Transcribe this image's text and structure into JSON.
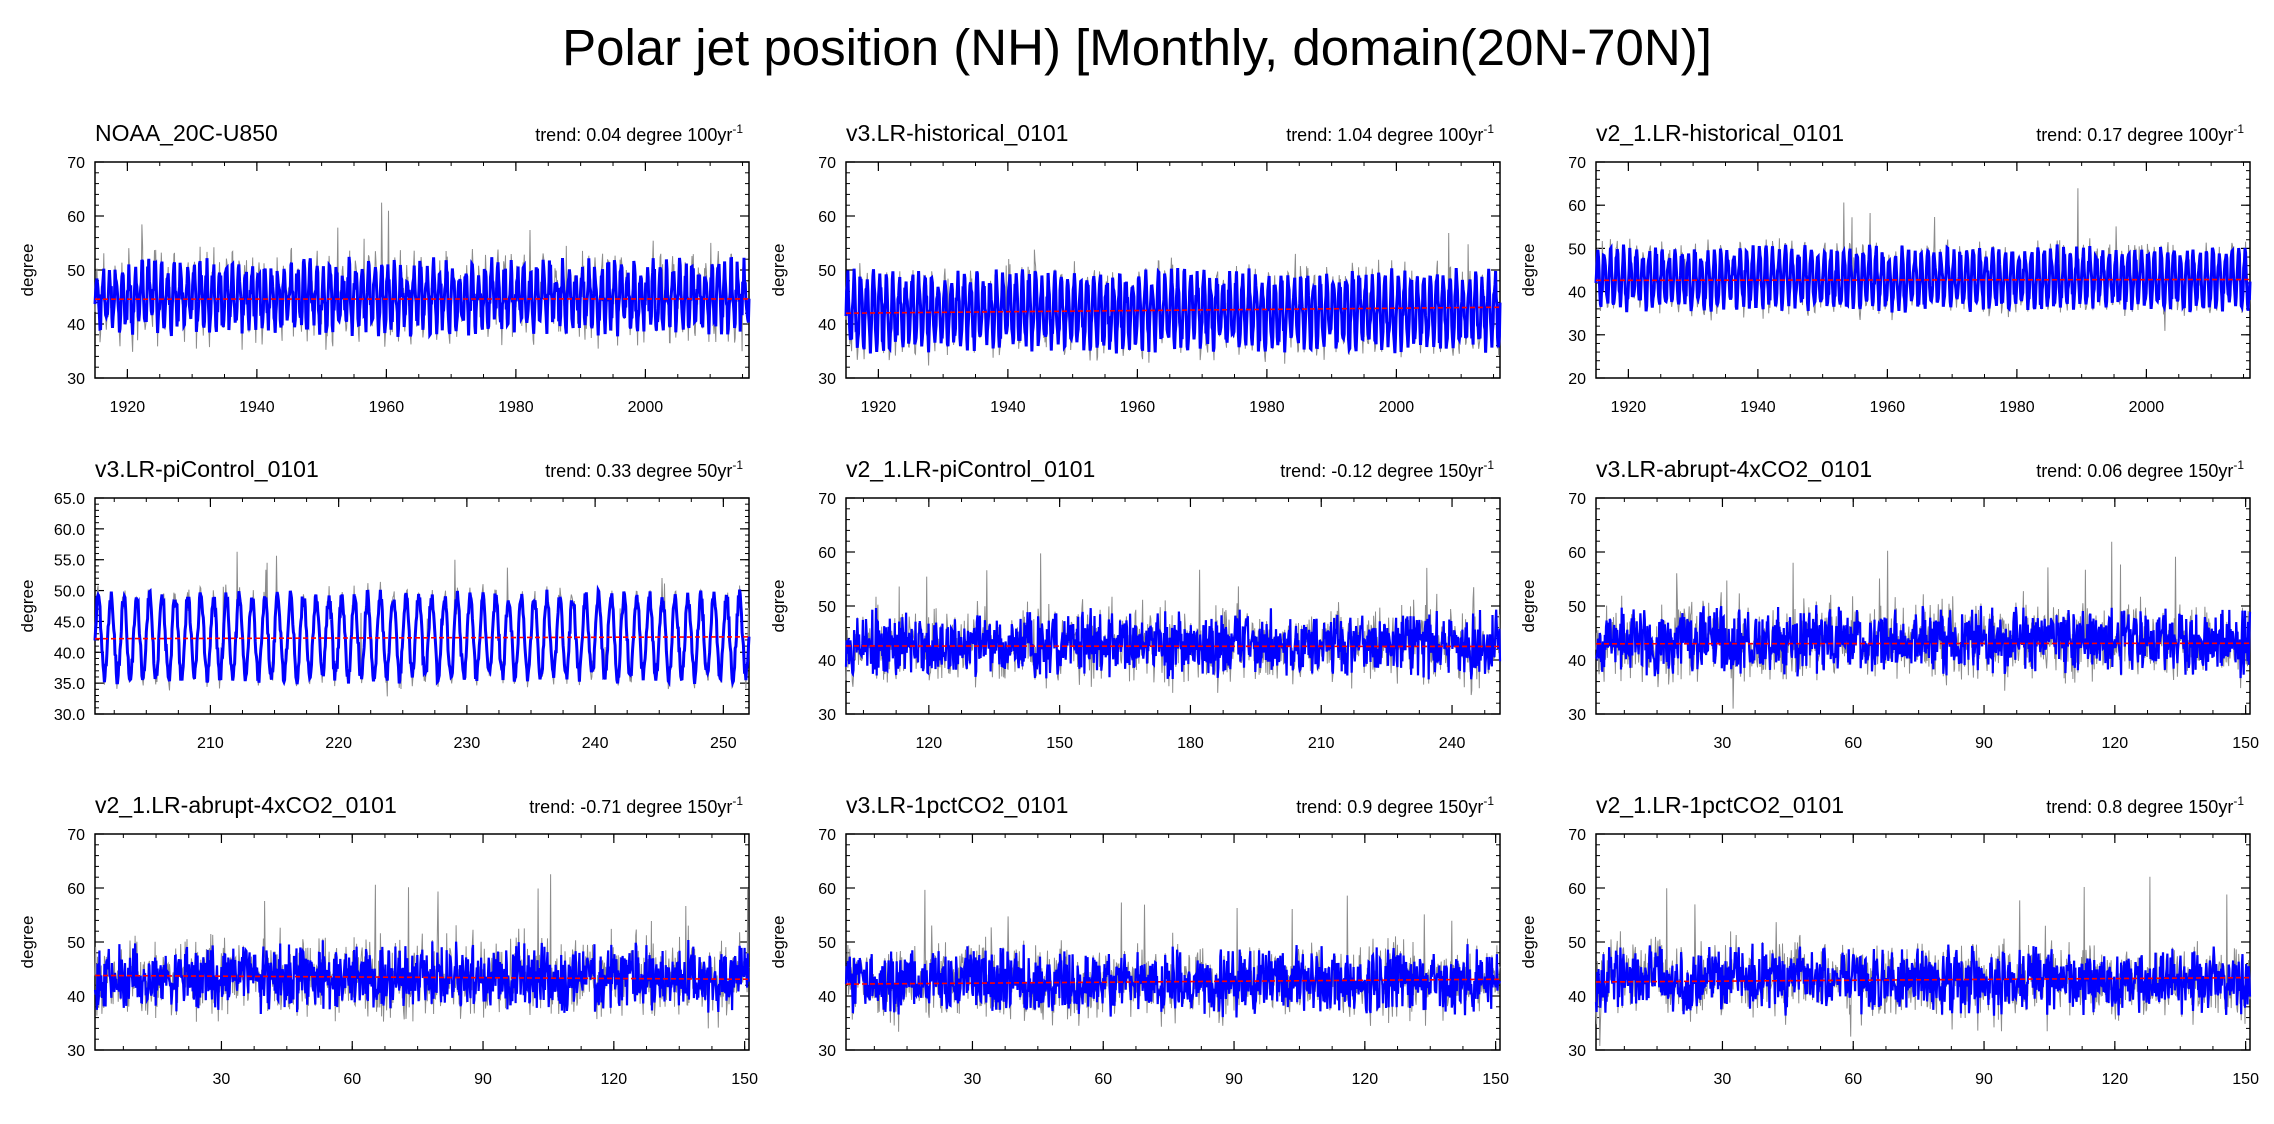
{
  "figure_title": "Polar jet position (NH) [Monthly, domain(20N-70N)]",
  "colors": {
    "series_main": "#0000ff",
    "series_thin": "#8c8c8c",
    "trend_line": "#ff0000",
    "axis": "#000000"
  },
  "chart_data": [
    {
      "type": "line",
      "title": "NOAA_20C-U850",
      "trend": "trend: 0.04 degree 100yr",
      "trend_exp": "-1",
      "ylabel": "degree",
      "xlim": [
        1915,
        2016
      ],
      "ylim": [
        30,
        70
      ],
      "xticks": [
        1920,
        1940,
        1960,
        1980,
        2000
      ],
      "xtick_labels": [
        "1920",
        "1940",
        "1960",
        "1980",
        "2000"
      ],
      "yticks": [
        30,
        40,
        50,
        60,
        70
      ],
      "ytick_labels": [
        "30",
        "40",
        "50",
        "60",
        "70"
      ],
      "series": [
        {
          "mean": 45.0,
          "amp": 5.0,
          "noise": 2.5,
          "spike": 10,
          "seed": 11,
          "style": "annual"
        }
      ],
      "trend_line": [
        [
          1915,
          44.6
        ],
        [
          2016,
          44.65
        ]
      ]
    },
    {
      "type": "line",
      "title": "v3.LR-historical_0101",
      "trend": "trend: 1.04 degree 100yr",
      "trend_exp": "-1",
      "ylabel": "degree",
      "xlim": [
        1915,
        2016
      ],
      "ylim": [
        30,
        70
      ],
      "xticks": [
        1920,
        1940,
        1960,
        1980,
        2000
      ],
      "xtick_labels": [
        "1920",
        "1940",
        "1960",
        "1980",
        "2000"
      ],
      "yticks": [
        30,
        40,
        50,
        60,
        70
      ],
      "ytick_labels": [
        "30",
        "40",
        "50",
        "60",
        "70"
      ],
      "series": [
        {
          "mean": 42.5,
          "amp": 6.0,
          "noise": 2.0,
          "spike": 9,
          "seed": 23,
          "style": "annual"
        }
      ],
      "trend_line": [
        [
          1915,
          42.0
        ],
        [
          2016,
          43.1
        ]
      ]
    },
    {
      "type": "line",
      "title": "v2_1.LR-historical_0101",
      "trend": "trend: 0.17 degree 100yr",
      "trend_exp": "-1",
      "ylabel": "degree",
      "xlim": [
        1915,
        2016
      ],
      "ylim": [
        20,
        70
      ],
      "xticks": [
        1920,
        1940,
        1960,
        1980,
        2000
      ],
      "xtick_labels": [
        "1920",
        "1940",
        "1960",
        "1980",
        "2000"
      ],
      "yticks": [
        20,
        30,
        40,
        50,
        60,
        70
      ],
      "ytick_labels": [
        "20",
        "30",
        "40",
        "50",
        "60",
        "70"
      ],
      "series": [
        {
          "mean": 43.0,
          "amp": 6.0,
          "noise": 2.0,
          "spike": 10,
          "seed": 37,
          "style": "annual"
        }
      ],
      "trend_line": [
        [
          1915,
          42.6
        ],
        [
          2016,
          42.8
        ]
      ]
    },
    {
      "type": "line",
      "title": "v3.LR-piControl_0101",
      "trend": "trend: 0.33 degree 50yr",
      "trend_exp": "-1",
      "ylabel": "degree",
      "xlim": [
        201,
        252
      ],
      "ylim": [
        30,
        65
      ],
      "xticks": [
        210,
        220,
        230,
        240,
        250
      ],
      "xtick_labels": [
        "210",
        "220",
        "230",
        "240",
        "250"
      ],
      "yticks": [
        30,
        35,
        40,
        45,
        50,
        55,
        60,
        65
      ],
      "ytick_labels": [
        "30.0",
        "35.0",
        "40.0",
        "45.0",
        "50.0",
        "55.0",
        "60.0",
        "65.0"
      ],
      "series": [
        {
          "mean": 42.5,
          "amp": 6.5,
          "noise": 1.2,
          "spike": 8,
          "seed": 41,
          "style": "annual"
        }
      ],
      "trend_line": [
        [
          201,
          42.2
        ],
        [
          252,
          42.5
        ]
      ]
    },
    {
      "type": "line",
      "title": "v2_1.LR-piControl_0101",
      "trend": "trend: -0.12 degree 150yr",
      "trend_exp": "-1",
      "ylabel": "degree",
      "xlim": [
        101,
        251
      ],
      "ylim": [
        30,
        70
      ],
      "xticks": [
        120,
        150,
        180,
        210,
        240
      ],
      "xtick_labels": [
        "120",
        "150",
        "180",
        "210",
        "240"
      ],
      "yticks": [
        30,
        40,
        50,
        60,
        70
      ],
      "ytick_labels": [
        "30",
        "40",
        "50",
        "60",
        "70"
      ],
      "series": [
        {
          "mean": 43.0,
          "amp": 4.5,
          "noise": 2.5,
          "spike": 10,
          "seed": 53,
          "style": "dense"
        }
      ],
      "trend_line": [
        [
          101,
          42.6
        ],
        [
          251,
          42.5
        ]
      ]
    },
    {
      "type": "line",
      "title": "v3.LR-abrupt-4xCO2_0101",
      "trend": "trend: 0.06 degree 150yr",
      "trend_exp": "-1",
      "ylabel": "degree",
      "xlim": [
        1,
        151
      ],
      "ylim": [
        30,
        70
      ],
      "xticks": [
        30,
        60,
        90,
        120,
        150
      ],
      "xtick_labels": [
        "30",
        "60",
        "90",
        "120",
        "150"
      ],
      "yticks": [
        30,
        40,
        50,
        60,
        70
      ],
      "ytick_labels": [
        "30",
        "40",
        "50",
        "60",
        "70"
      ],
      "series": [
        {
          "mean": 43.5,
          "amp": 4.5,
          "noise": 2.5,
          "spike": 11,
          "seed": 67,
          "style": "dense"
        }
      ],
      "trend_line": [
        [
          1,
          43.0
        ],
        [
          151,
          43.1
        ]
      ]
    },
    {
      "type": "line",
      "title": "v2_1.LR-abrupt-4xCO2_0101",
      "trend": "trend: -0.71 degree 150yr",
      "trend_exp": "-1",
      "ylabel": "degree",
      "xlim": [
        1,
        151
      ],
      "ylim": [
        30,
        70
      ],
      "xticks": [
        30,
        60,
        90,
        120,
        150
      ],
      "xtick_labels": [
        "30",
        "60",
        "90",
        "120",
        "150"
      ],
      "yticks": [
        30,
        40,
        50,
        60,
        70
      ],
      "ytick_labels": [
        "30",
        "40",
        "50",
        "60",
        "70"
      ],
      "series": [
        {
          "mean": 43.5,
          "amp": 4.5,
          "noise": 2.5,
          "spike": 12,
          "seed": 79,
          "style": "dense"
        }
      ],
      "trend_line": [
        [
          1,
          43.8
        ],
        [
          151,
          43.1
        ]
      ]
    },
    {
      "type": "line",
      "title": "v3.LR-1pctCO2_0101",
      "trend": "trend: 0.9 degree 150yr",
      "trend_exp": "-1",
      "ylabel": "degree",
      "xlim": [
        1,
        151
      ],
      "ylim": [
        30,
        70
      ],
      "xticks": [
        30,
        60,
        90,
        120,
        150
      ],
      "xtick_labels": [
        "30",
        "60",
        "90",
        "120",
        "150"
      ],
      "yticks": [
        30,
        40,
        50,
        60,
        70
      ],
      "ytick_labels": [
        "30",
        "40",
        "50",
        "60",
        "70"
      ],
      "series": [
        {
          "mean": 42.8,
          "amp": 4.5,
          "noise": 2.5,
          "spike": 11,
          "seed": 83,
          "style": "dense"
        }
      ],
      "trend_line": [
        [
          1,
          42.2
        ],
        [
          151,
          43.1
        ]
      ]
    },
    {
      "type": "line",
      "title": "v2_1.LR-1pctCO2_0101",
      "trend": "trend: 0.8 degree 150yr",
      "trend_exp": "-1",
      "ylabel": "degree",
      "xlim": [
        1,
        151
      ],
      "ylim": [
        30,
        70
      ],
      "xticks": [
        30,
        60,
        90,
        120,
        150
      ],
      "xtick_labels": [
        "30",
        "60",
        "90",
        "120",
        "150"
      ],
      "yticks": [
        30,
        40,
        50,
        60,
        70
      ],
      "ytick_labels": [
        "30",
        "40",
        "50",
        "60",
        "70"
      ],
      "series": [
        {
          "mean": 43.0,
          "amp": 4.5,
          "noise": 2.5,
          "spike": 12,
          "seed": 97,
          "style": "dense"
        }
      ],
      "trend_line": [
        [
          1,
          42.6
        ],
        [
          151,
          43.4
        ]
      ]
    }
  ]
}
